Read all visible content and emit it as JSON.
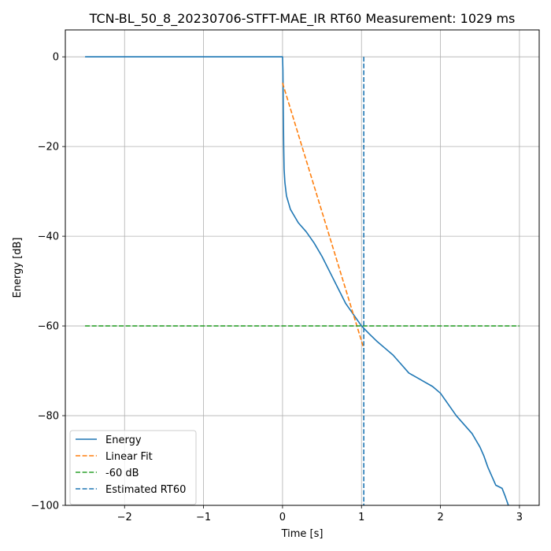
{
  "chart_data": {
    "type": "line",
    "title": "TCN-BL_50_8_20230706-STFT-MAE_IR RT60 Measurement: 1029 ms",
    "xlabel": "Time [s]",
    "ylabel": "Energy [dB]",
    "xlim": [
      -2.75,
      3.25
    ],
    "ylim": [
      -100,
      6
    ],
    "xticks": [
      -2,
      -1,
      0,
      1,
      2,
      3
    ],
    "xtick_labels": [
      "−2",
      "−1",
      "0",
      "1",
      "2",
      "3"
    ],
    "yticks": [
      0,
      -20,
      -40,
      -60,
      -80,
      -100
    ],
    "ytick_labels": [
      "0",
      "−20",
      "−40",
      "−60",
      "−80",
      "−100"
    ],
    "grid": true,
    "legend_position": "lower left",
    "series": [
      {
        "name": "Energy",
        "style": "solid",
        "color": "#1f77b4",
        "points": [
          [
            -2.5,
            0
          ],
          [
            -1.0,
            0
          ],
          [
            0.0,
            0
          ],
          [
            0.005,
            -3
          ],
          [
            0.01,
            -12
          ],
          [
            0.015,
            -20
          ],
          [
            0.02,
            -25
          ],
          [
            0.03,
            -28
          ],
          [
            0.05,
            -31
          ],
          [
            0.1,
            -34
          ],
          [
            0.15,
            -35.5
          ],
          [
            0.2,
            -37
          ],
          [
            0.3,
            -39
          ],
          [
            0.4,
            -41.5
          ],
          [
            0.5,
            -44.5
          ],
          [
            0.6,
            -48
          ],
          [
            0.7,
            -51.5
          ],
          [
            0.8,
            -55
          ],
          [
            0.9,
            -57.5
          ],
          [
            1.0,
            -60
          ],
          [
            1.1,
            -61.8
          ],
          [
            1.2,
            -63.5
          ],
          [
            1.3,
            -65
          ],
          [
            1.4,
            -66.5
          ],
          [
            1.5,
            -68.5
          ],
          [
            1.6,
            -70.5
          ],
          [
            1.7,
            -71.5
          ],
          [
            1.8,
            -72.5
          ],
          [
            1.9,
            -73.5
          ],
          [
            2.0,
            -75
          ],
          [
            2.1,
            -77.5
          ],
          [
            2.2,
            -80
          ],
          [
            2.3,
            -82
          ],
          [
            2.4,
            -84
          ],
          [
            2.45,
            -85.5
          ],
          [
            2.5,
            -87
          ],
          [
            2.55,
            -89
          ],
          [
            2.6,
            -91.5
          ],
          [
            2.65,
            -93.5
          ],
          [
            2.7,
            -95.5
          ],
          [
            2.78,
            -96.2
          ],
          [
            2.82,
            -98
          ],
          [
            2.86,
            -100
          ]
        ]
      },
      {
        "name": "Linear Fit",
        "style": "dashed",
        "color": "#ff7f0e",
        "points": [
          [
            0.0,
            -5.8
          ],
          [
            1.02,
            -64.5
          ]
        ]
      },
      {
        "name": "-60 dB",
        "style": "dashed",
        "color": "#2ca02c",
        "points": [
          [
            -2.5,
            -60
          ],
          [
            3.0,
            -60
          ]
        ]
      },
      {
        "name": "Estimated RT60",
        "style": "dashed",
        "color": "#1f77b4",
        "points": [
          [
            1.029,
            0
          ],
          [
            1.029,
            -100
          ]
        ]
      }
    ]
  }
}
